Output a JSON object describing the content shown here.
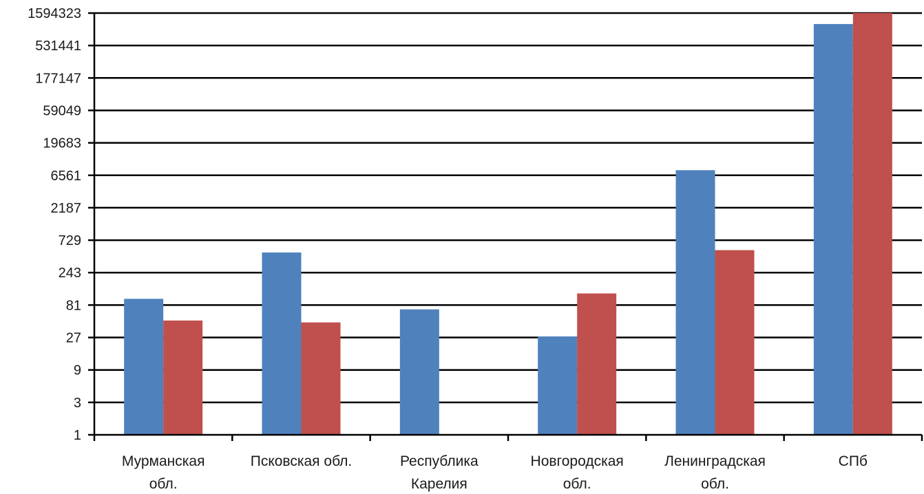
{
  "chart_data": {
    "type": "bar",
    "yscale": "log3",
    "ylim": [
      1,
      1594323
    ],
    "yticks": [
      "1",
      "3",
      "9",
      "27",
      "81",
      "243",
      "729",
      "2187",
      "6561",
      "19683",
      "59049",
      "177147",
      "531441",
      "1594323"
    ],
    "categories": [
      [
        "Мурманская",
        "обл."
      ],
      [
        "Псковская обл."
      ],
      [
        "Республика",
        "Карелия"
      ],
      [
        "Новгородская",
        "обл."
      ],
      [
        "Ленинградская",
        "обл."
      ],
      [
        "СПб"
      ]
    ],
    "series": [
      {
        "color": "#4f81bd",
        "values": [
          100,
          480,
          70,
          28,
          7800,
          1100000
        ]
      },
      {
        "color": "#c0504d",
        "values": [
          48,
          45,
          null,
          120,
          520,
          1600000
        ]
      }
    ],
    "grid": true,
    "legend": "none"
  }
}
